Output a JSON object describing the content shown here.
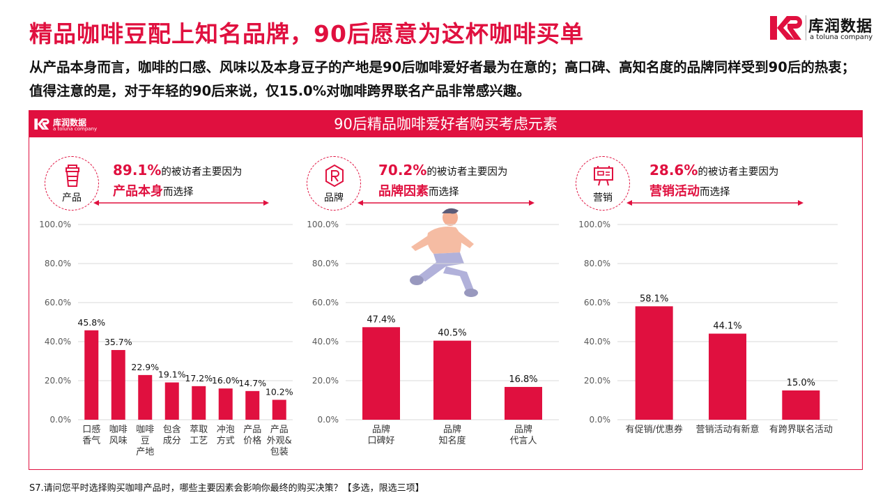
{
  "header": {
    "title": "精品咖啡豆配上知名品牌，90后愿意为这杯咖啡买单",
    "logo_cn": "库润数据",
    "logo_en": "a toluna company"
  },
  "description": "从产品本身而言，咖啡的口感、风味以及本身豆子的产地是90后咖啡爱好者最为在意的；高口碑、高知名度的品牌同样受到90后的热衷；值得注意的是，对于年轻的90后来说，仅15.0%对咖啡跨界联名产品非常感兴趣。",
  "panel": {
    "title": "90后精品咖啡爱好者购买考虑元素",
    "logo_cn": "库润数据",
    "logo_en": "a toluna company"
  },
  "sections": [
    {
      "icon_label": "产品",
      "icon": "coffee-cup-icon",
      "pct": "89.1%",
      "text1": "的被访者主要因为",
      "keyword": "产品本身",
      "text2": "而选择"
    },
    {
      "icon_label": "品牌",
      "icon": "brand-r-icon",
      "pct": "70.2%",
      "text1": "的被访者主要因为",
      "keyword": "品牌因素",
      "text2": "而选择"
    },
    {
      "icon_label": "营销",
      "icon": "billboard-icon",
      "pct": "28.6%",
      "text1": "的被访者主要因为",
      "keyword": "营销活动",
      "text2": "而选择"
    }
  ],
  "colors": {
    "accent": "#e0103f",
    "grid": "#d9d9d9"
  },
  "chart_data": [
    {
      "type": "bar",
      "categories": [
        [
          "口感",
          "香气"
        ],
        [
          "咖啡",
          "风味"
        ],
        [
          "咖啡",
          "豆",
          "产地"
        ],
        [
          "包含",
          "成分"
        ],
        [
          "萃取",
          "工艺"
        ],
        [
          "冲泡",
          "方式"
        ],
        [
          "产品",
          "价格"
        ],
        [
          "产品",
          "外观&",
          "包装"
        ]
      ],
      "values": [
        45.8,
        35.7,
        22.9,
        19.1,
        17.2,
        16.0,
        14.7,
        10.2
      ],
      "labels": [
        "45.8%",
        "35.7%",
        "22.9%",
        "19.1%",
        "17.2%",
        "16.0%",
        "14.7%",
        "10.2%"
      ],
      "yticks": [
        "0.0%",
        "20.0%",
        "40.0%",
        "60.0%",
        "80.0%",
        "100.0%"
      ],
      "ylim": [
        0,
        100
      ]
    },
    {
      "type": "bar",
      "categories": [
        [
          "品牌",
          "口碑好"
        ],
        [
          "品牌",
          "知名度"
        ],
        [
          "品牌",
          "代言人"
        ]
      ],
      "values": [
        47.4,
        40.5,
        16.8
      ],
      "labels": [
        "47.4%",
        "40.5%",
        "16.8%"
      ],
      "yticks": [
        "0.0%",
        "20.0%",
        "40.0%",
        "60.0%",
        "80.0%",
        "100.0%"
      ],
      "ylim": [
        0,
        100
      ]
    },
    {
      "type": "bar",
      "categories": [
        [
          "有促销/优惠券"
        ],
        [
          "营销活动有新意"
        ],
        [
          "有跨界联名活动"
        ]
      ],
      "values": [
        58.1,
        44.1,
        15.0
      ],
      "labels": [
        "58.1%",
        "44.1%",
        "15.0%"
      ],
      "yticks": [
        "0.0%",
        "20.0%",
        "40.0%",
        "60.0%",
        "80.0%",
        "100.0%"
      ],
      "ylim": [
        0,
        100
      ]
    }
  ],
  "footnote": "S7.请问您平时选择购买咖啡产品时，哪些主要因素会影响你最终的购买决策？【多选，限选三项】"
}
